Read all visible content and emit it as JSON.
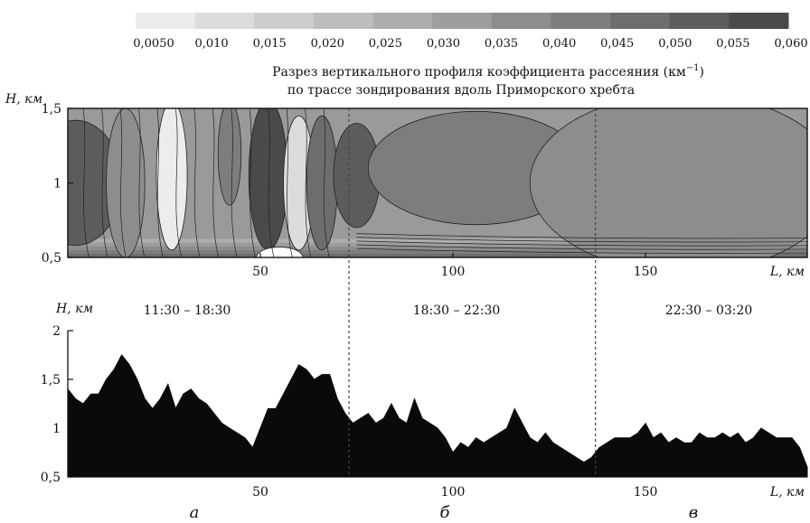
{
  "colorbar": {
    "ticks": [
      "0,0050",
      "0,010",
      "0,015",
      "0,020",
      "0,025",
      "0,030",
      "0,035",
      "0,040",
      "0,045",
      "0,050",
      "0,055",
      "0,060"
    ],
    "colors": [
      "#ececec",
      "#dcdcdc",
      "#cdcdcd",
      "#bdbdbd",
      "#aeaeae",
      "#9e9e9e",
      "#8d8d8d",
      "#7d7d7d",
      "#6d6d6d",
      "#5c5c5c",
      "#4a4a4a"
    ]
  },
  "title_line1": "Разрез вертикального профиля коэффициента рассеяния (км",
  "title_sup": "−1",
  "title_close": ")",
  "title_line2": "по трассе зондирования вдоль Приморского хребта",
  "top_panel": {
    "ylabel": "H, км",
    "xlabel": "L, км",
    "yticks": [
      "1,5",
      "1",
      "0,5"
    ],
    "xticks": [
      "50",
      "100",
      "150"
    ]
  },
  "bottom_panel": {
    "ylabel": "H, км",
    "xlabel": "L, км",
    "yticks": [
      "2",
      "1,5",
      "1",
      "0,5"
    ],
    "xticks": [
      "50",
      "100",
      "150"
    ],
    "time_labels": [
      "11:30 – 18:30",
      "18:30 – 22:30",
      "22:30 – 03:20"
    ]
  },
  "panel_letters": [
    "а",
    "б",
    "в"
  ],
  "chart_data": [
    {
      "type": "heatmap",
      "title": "Разрез вертикального профиля коэффициента рассеяния (км−1) по трассе зондирования вдоль Приморского хребта",
      "xlabel": "L, км",
      "ylabel": "H, км",
      "xlim": [
        0,
        192
      ],
      "ylim": [
        0.5,
        1.5
      ],
      "color_range": [
        0.005,
        0.06
      ],
      "grid": false,
      "z_unit": "км−1",
      "dividers_x": [
        73,
        137
      ],
      "blobs": [
        {
          "x": 2,
          "y": 1.0,
          "rx": 12,
          "ry": 0.42,
          "v": 0.052
        },
        {
          "x": 15,
          "y": 1.0,
          "rx": 5,
          "ry": 0.5,
          "v": 0.038
        },
        {
          "x": 27,
          "y": 1.05,
          "rx": 4,
          "ry": 0.5,
          "v": 0.006
        },
        {
          "x": 42,
          "y": 1.2,
          "rx": 3,
          "ry": 0.35,
          "v": 0.04
        },
        {
          "x": 52,
          "y": 1.05,
          "rx": 5,
          "ry": 0.5,
          "v": 0.055
        },
        {
          "x": 60,
          "y": 1.0,
          "rx": 4,
          "ry": 0.45,
          "v": 0.01
        },
        {
          "x": 66,
          "y": 1.0,
          "rx": 4,
          "ry": 0.45,
          "v": 0.048
        },
        {
          "x": 55,
          "y": 0.5,
          "rx": 6,
          "ry": 0.07,
          "v": 0.0
        },
        {
          "x": 75,
          "y": 1.05,
          "rx": 6,
          "ry": 0.35,
          "v": 0.05
        },
        {
          "x": 103,
          "y": 1.02,
          "rx": 10,
          "ry": 0.18,
          "v": 0.05
        },
        {
          "x": 106,
          "y": 1.1,
          "rx": 28,
          "ry": 0.38,
          "v": 0.04
        },
        {
          "x": 170,
          "y": 1.15,
          "rx": 4,
          "ry": 0.07,
          "v": 0.058
        },
        {
          "x": 166,
          "y": 1.15,
          "rx": 13,
          "ry": 0.14,
          "v": 0.045
        },
        {
          "x": 177,
          "y": 0.9,
          "rx": 3,
          "ry": 0.07,
          "v": 0.045
        },
        {
          "x": 158,
          "y": 1.3,
          "rx": 4,
          "ry": 0.05,
          "v": 0.042
        },
        {
          "x": 180,
          "y": 0.85,
          "rx": 10,
          "ry": 0.08,
          "v": 0.04
        },
        {
          "x": 160,
          "y": 1.0,
          "rx": 40,
          "ry": 0.6,
          "v": 0.036
        }
      ]
    },
    {
      "type": "area",
      "xlabel": "L, км",
      "ylabel": "H, км",
      "xlim": [
        0,
        192
      ],
      "ylim": [
        0.5,
        2.0
      ],
      "grid": false,
      "dividers_x": [
        73,
        137
      ],
      "series": [
        {
          "x": [
            0,
            2,
            4,
            6,
            8,
            10,
            12,
            14,
            16,
            18,
            20,
            22,
            24,
            26,
            28,
            30,
            32,
            34,
            36,
            38,
            40,
            42,
            44,
            46,
            48,
            50,
            52,
            54,
            56,
            58,
            60,
            62,
            64,
            66,
            68,
            70,
            72,
            74,
            76,
            78,
            80,
            82,
            84,
            86,
            88,
            90,
            92,
            94,
            96,
            98,
            100,
            102,
            104,
            106,
            108,
            110,
            112,
            114,
            116,
            118,
            120,
            122,
            124,
            126,
            128,
            130,
            132,
            134,
            136,
            138,
            140,
            142,
            144,
            146,
            148,
            150,
            152,
            154,
            156,
            158,
            160,
            162,
            164,
            166,
            168,
            170,
            172,
            174,
            176,
            178,
            180,
            182,
            184,
            186,
            188,
            190,
            192
          ],
          "values": [
            1.4,
            1.3,
            1.25,
            1.35,
            1.35,
            1.5,
            1.6,
            1.75,
            1.65,
            1.5,
            1.3,
            1.2,
            1.3,
            1.45,
            1.2,
            1.35,
            1.4,
            1.3,
            1.25,
            1.15,
            1.05,
            1.0,
            0.95,
            0.9,
            0.8,
            1.0,
            1.2,
            1.2,
            1.35,
            1.5,
            1.65,
            1.6,
            1.5,
            1.55,
            1.55,
            1.3,
            1.15,
            1.05,
            1.1,
            1.15,
            1.05,
            1.1,
            1.25,
            1.1,
            1.05,
            1.3,
            1.1,
            1.05,
            1.0,
            0.9,
            0.75,
            0.85,
            0.8,
            0.9,
            0.85,
            0.9,
            0.95,
            1.0,
            1.2,
            1.05,
            0.9,
            0.85,
            0.95,
            0.85,
            0.8,
            0.75,
            0.7,
            0.65,
            0.7,
            0.8,
            0.85,
            0.9,
            0.9,
            0.9,
            0.95,
            1.05,
            0.9,
            0.95,
            0.85,
            0.9,
            0.85,
            0.85,
            0.95,
            0.9,
            0.9,
            0.95,
            0.9,
            0.95,
            0.85,
            0.9,
            1.0,
            0.95,
            0.9,
            0.9,
            0.9,
            0.8,
            0.6
          ]
        }
      ]
    }
  ]
}
